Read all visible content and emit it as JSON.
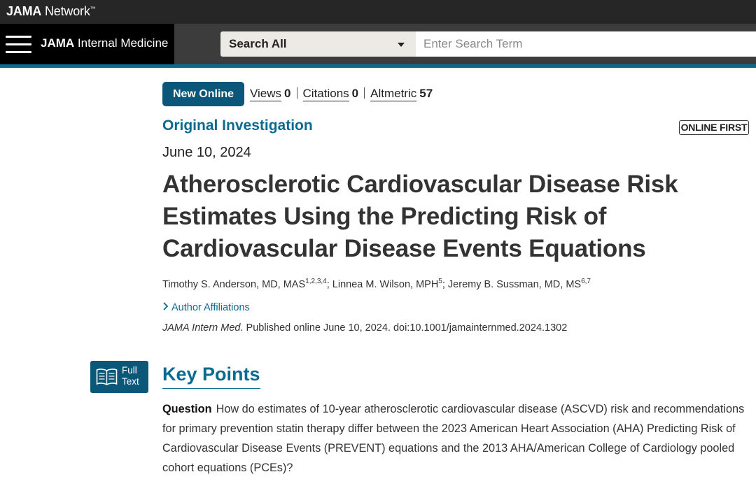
{
  "network": {
    "brand_bold": "JAMA",
    "brand_rest": " Network",
    "tm": "™"
  },
  "journal": {
    "name_bold": "JAMA",
    "name_rest": " Internal Medicine"
  },
  "search": {
    "scope": "Search All",
    "placeholder": "Enter Search Term"
  },
  "article": {
    "badge": "New Online",
    "metrics": [
      {
        "label": "Views",
        "value": "0"
      },
      {
        "label": "Citations",
        "value": "0"
      },
      {
        "label": "Altmetric",
        "value": "57"
      }
    ],
    "type": "Original Investigation",
    "status": "ONLINE FIRST",
    "date": "June 10, 2024",
    "title": "Atherosclerotic Cardiovascular Disease Risk Estimates Using the Predicting Risk of Cardiovascular Disease Events Equations",
    "authors": [
      {
        "name": "Timothy S. Anderson, MD, MAS",
        "sup": "1,2,3,4"
      },
      {
        "name": "Linnea M. Wilson, MPH",
        "sup": "5"
      },
      {
        "name": "Jeremy B. Sussman, MD, MS",
        "sup": "6,7"
      }
    ],
    "affiliations_label": "Author Affiliations",
    "citation_journal": "JAMA Intern Med.",
    "citation_rest": " Published online June 10, 2024. doi:10.1001/jamainternmed.2024.1302"
  },
  "fulltext": {
    "line1": "Full",
    "line2": "Text"
  },
  "key_points": {
    "heading": "Key Points",
    "question_label": "Question",
    "question_text": "How do estimates of 10-year atherosclerotic cardiovascular disease (ASCVD) risk and recommendations for primary prevention statin therapy differ between the 2023 American Heart Association (AHA) Predicting Risk of Cardiovascular Disease Events (PREVENT) equations and the 2013 AHA/American College of Cardiology pooled cohort equations (PCEs)?"
  },
  "colors": {
    "accent": "#0b6a8f",
    "button": "#0b5779",
    "topbar": "#262626"
  },
  "icons": {
    "menu": "hamburger-menu-icon",
    "dropdown": "caret-down-icon",
    "expand": "chevron-right-icon",
    "fulltext": "book-icon"
  }
}
